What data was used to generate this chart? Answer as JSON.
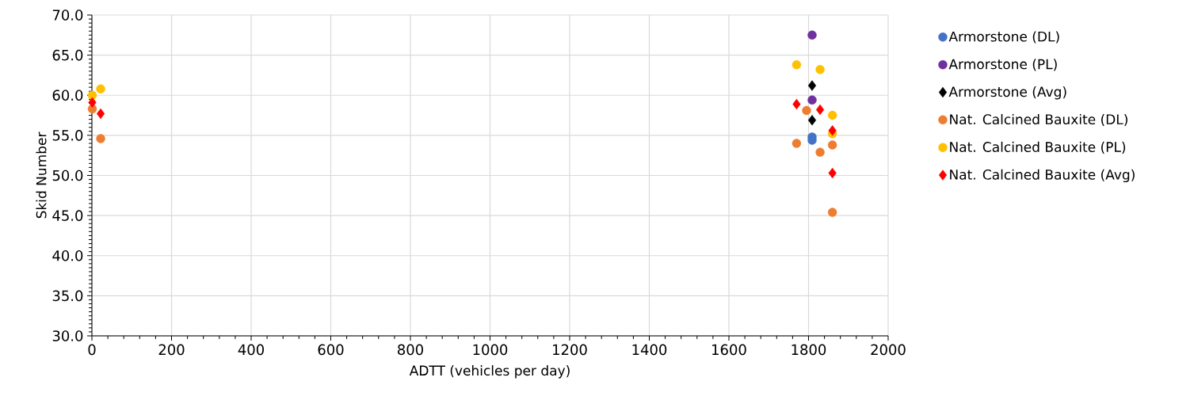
{
  "chart_data": {
    "type": "scatter",
    "xlabel": "ADTT (vehicles per day)",
    "ylabel": "Skid Number",
    "xlim": [
      0,
      2000
    ],
    "xticks": [
      0,
      200,
      400,
      600,
      800,
      1000,
      1200,
      1400,
      1600,
      1800,
      2000
    ],
    "ylim": [
      30,
      70
    ],
    "yticks": [
      {
        "value": 30,
        "label": "30.0"
      },
      {
        "value": 35,
        "label": "35.0"
      },
      {
        "value": 40,
        "label": "40.0"
      },
      {
        "value": 45,
        "label": "45.0"
      },
      {
        "value": 50,
        "label": "50.0"
      },
      {
        "value": 55,
        "label": "55.0"
      },
      {
        "value": 60,
        "label": "60.0"
      },
      {
        "value": 65,
        "label": "65.0"
      },
      {
        "value": 70,
        "label": "70.0"
      }
    ],
    "grid": true,
    "legend": "right",
    "series": [
      {
        "name": "Armorstone (DL)",
        "color": "#4472c4",
        "marker": "circle",
        "x": [
          1809,
          1809
        ],
        "values": [
          54.8,
          54.4
        ]
      },
      {
        "name": "Armorstone (PL)",
        "color": "#7030a0",
        "marker": "circle",
        "x": [
          1809,
          1809
        ],
        "values": [
          67.5,
          59.4
        ]
      },
      {
        "name": "Armorstone (Avg)",
        "color": "#000000",
        "marker": "diamond",
        "x": [
          1809,
          1809
        ],
        "values": [
          61.2,
          56.9
        ]
      },
      {
        "name": "Nat. Calcined Bauxite (DL)",
        "color": "#ed7d31",
        "marker": "circle",
        "x": [
          1,
          22,
          1770,
          1795,
          1829,
          1860,
          1860
        ],
        "values": [
          58.3,
          54.6,
          54.0,
          58.1,
          52.9,
          53.8,
          45.4
        ]
      },
      {
        "name": "Nat. Calcined Bauxite (PL)",
        "color": "#ffc000",
        "marker": "circle",
        "x": [
          1,
          22,
          1770,
          1829,
          1860,
          1860
        ],
        "values": [
          60.0,
          60.8,
          63.8,
          63.2,
          57.5,
          55.2
        ]
      },
      {
        "name": "Nat. Calcined Bauxite (Avg)",
        "color": "#ff0000",
        "marker": "diamond",
        "x": [
          1,
          22,
          1770,
          1829,
          1860,
          1860
        ],
        "values": [
          59.1,
          57.7,
          58.9,
          58.2,
          55.6,
          50.3
        ]
      }
    ]
  }
}
